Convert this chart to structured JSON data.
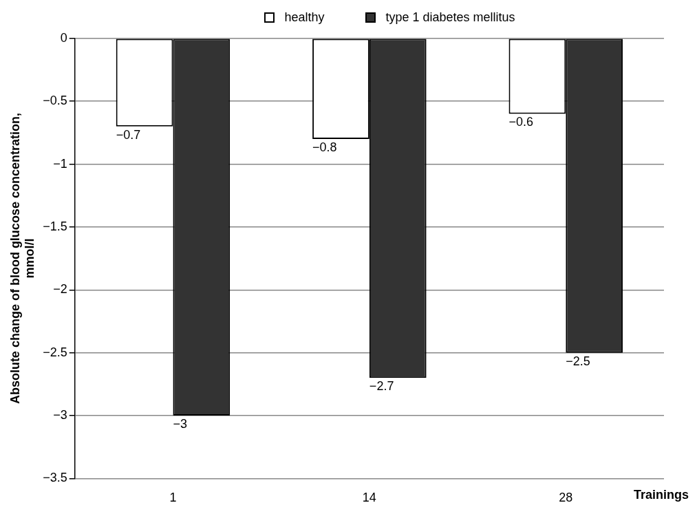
{
  "chart_data": {
    "type": "bar",
    "categories": [
      "1",
      "14",
      "28"
    ],
    "xlabel": "Trainings",
    "ylabel": "Absolute change of blood glucose concentration,\nmmol/l",
    "series": [
      {
        "name": "healthy",
        "color": "#ffffff",
        "values": [
          -0.7,
          -0.8,
          -0.6
        ],
        "value_labels": [
          "−0.7",
          "−0.8",
          "−0.6"
        ]
      },
      {
        "name": "type 1 diabetes mellitus",
        "color": "#333333",
        "values": [
          -3,
          -2.7,
          -2.5
        ],
        "value_labels": [
          "−3",
          "−2.7",
          "−2.5"
        ]
      }
    ],
    "ylim": [
      -3.5,
      0
    ],
    "yticks": [
      {
        "value": -3.5,
        "label": "−3.5"
      },
      {
        "value": -3,
        "label": "−3"
      },
      {
        "value": -2.5,
        "label": "−2.5"
      },
      {
        "value": -2,
        "label": "−2"
      },
      {
        "value": -1.5,
        "label": "−1.5"
      },
      {
        "value": -1,
        "label": "−1"
      },
      {
        "value": -0.5,
        "label": "−0.5"
      },
      0
    ],
    "grid": "y",
    "legend": "top"
  }
}
